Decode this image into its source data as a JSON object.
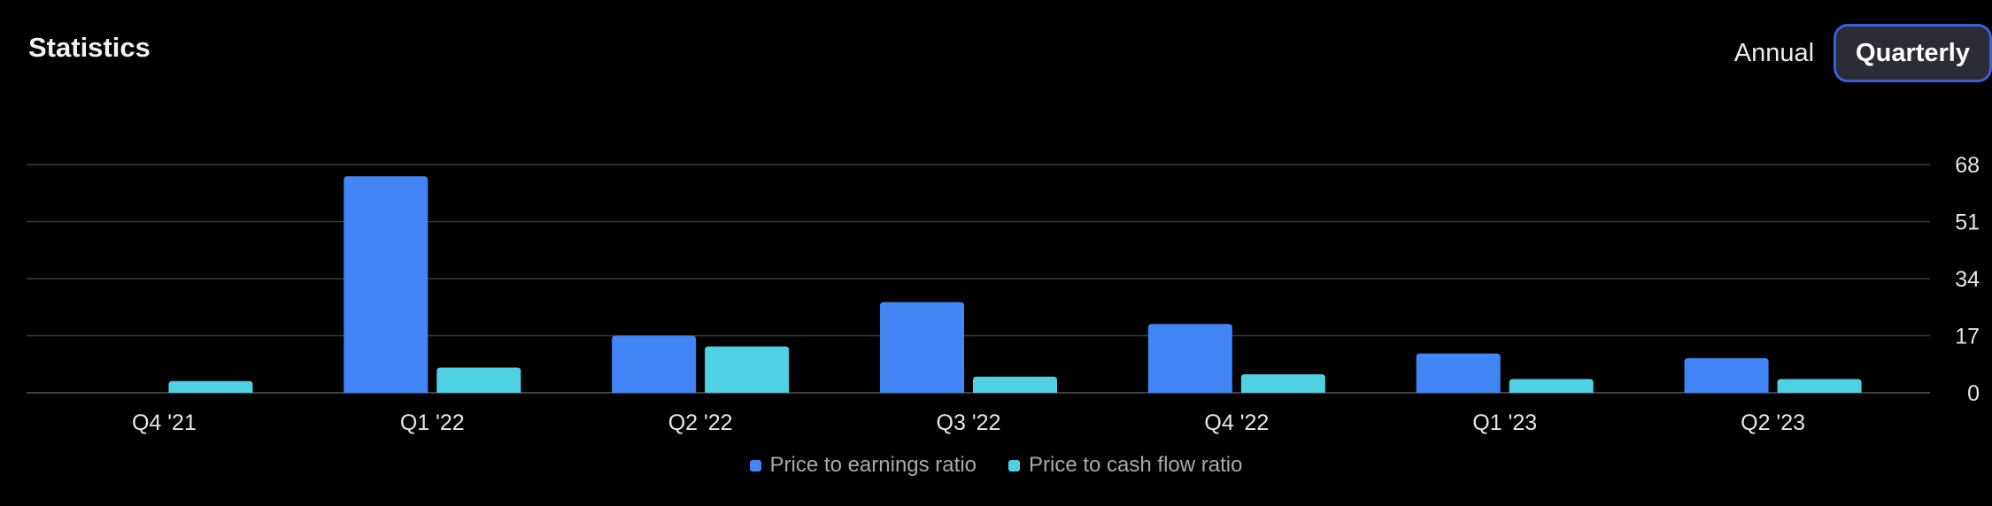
{
  "header": {
    "title": "Statistics",
    "toggle_annual": "Annual",
    "toggle_quarterly": "Quarterly",
    "active_toggle": "Quarterly"
  },
  "colors": {
    "pe": "#4285f4",
    "pcf": "#4fd1e3",
    "grid": "#3a3a3c",
    "axis_text": "#e5e5ea",
    "active_border": "#3a5fd6"
  },
  "chart_data": {
    "type": "bar",
    "categories": [
      "Q4 '21",
      "Q1 '22",
      "Q2 '22",
      "Q3 '22",
      "Q4 '22",
      "Q1 '23",
      "Q2 '23"
    ],
    "series": [
      {
        "name": "Price to earnings ratio",
        "values": [
          null,
          64.5,
          17,
          27,
          20.5,
          11.7,
          10.3
        ]
      },
      {
        "name": "Price to cash flow ratio",
        "values": [
          3.5,
          7.5,
          13.8,
          4.8,
          5.5,
          4.1,
          4.1
        ]
      }
    ],
    "y_ticks": [
      0,
      17,
      34,
      51,
      68
    ],
    "ylim": [
      0,
      68
    ],
    "y_axis_position": "right",
    "grid": true,
    "legend_position": "bottom-center"
  }
}
